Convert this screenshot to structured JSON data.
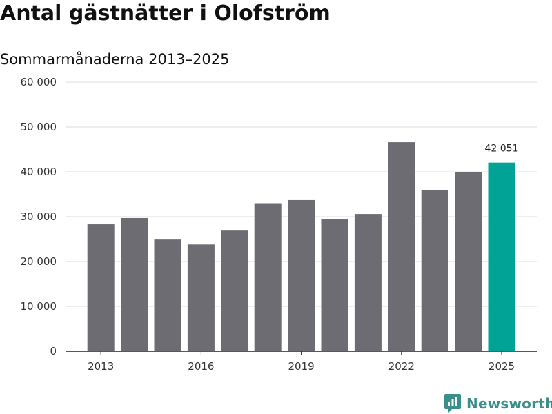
{
  "header": {
    "title": "Antal gästnätter i Olofström",
    "subtitle": "Sommarmånaderna 2013–2025"
  },
  "colors": {
    "bar_default": "#6d6c72",
    "bar_highlight": "#00a396",
    "grid": "#dddddd",
    "axis": "#222222",
    "brand": "#3a8f8c"
  },
  "brand": {
    "name": "Newsworthy",
    "icon": "newsworthy-logo-icon"
  },
  "chart_data": {
    "type": "bar",
    "title": "Antal gästnätter i Olofström",
    "subtitle": "Sommarmånaderna 2013–2025",
    "categories": [
      "2013",
      "2014",
      "2015",
      "2016",
      "2017",
      "2018",
      "2019",
      "2020",
      "2021",
      "2022",
      "2023",
      "2024",
      "2025"
    ],
    "values": [
      28300,
      29700,
      24900,
      23800,
      26900,
      33000,
      33700,
      29400,
      30600,
      46600,
      35900,
      39900,
      42051
    ],
    "highlight_index": 12,
    "annotation": {
      "index": 12,
      "text": "42 051"
    },
    "x_tick_labels": [
      "2013",
      "2016",
      "2019",
      "2022",
      "2025"
    ],
    "x_tick_indices": [
      0,
      3,
      6,
      9,
      12
    ],
    "y_ticks": [
      0,
      10000,
      20000,
      30000,
      40000,
      50000,
      60000
    ],
    "y_tick_labels": [
      "0",
      "10 000",
      "20 000",
      "30 000",
      "40 000",
      "50 000",
      "60 000"
    ],
    "ylim": [
      0,
      60000
    ],
    "xlabel": "",
    "ylabel": "",
    "grid": true,
    "legend": "none"
  }
}
